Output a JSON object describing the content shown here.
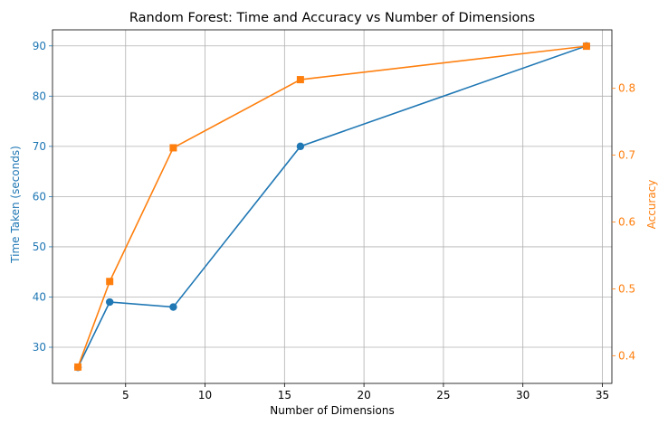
{
  "chart_data": {
    "type": "line",
    "title": "Random Forest: Time and Accuracy vs Number of Dimensions",
    "xlabel": "Number of Dimensions",
    "ylabel_left": "Time Taken (seconds)",
    "ylabel_right": "Accuracy",
    "x": [
      2,
      4,
      8,
      16,
      34
    ],
    "xlim": [
      0.4,
      35.6
    ],
    "xticks": [
      5,
      10,
      15,
      20,
      25,
      30,
      35
    ],
    "ylim_left": [
      22.8,
      93.2
    ],
    "yticks_left": [
      30,
      40,
      50,
      60,
      70,
      80,
      90
    ],
    "ylim_right": [
      0.3585,
      0.8875
    ],
    "yticks_right": [
      0.4,
      0.5,
      0.6,
      0.7,
      0.8
    ],
    "grid": true,
    "series": [
      {
        "axis": "left",
        "values": [
          26,
          39,
          38,
          70,
          90
        ],
        "color": "#1f77b4",
        "marker": "circle"
      },
      {
        "axis": "right",
        "values": [
          0.383,
          0.511,
          0.711,
          0.813,
          0.863
        ],
        "color": "#ff7f0e",
        "marker": "square"
      }
    ]
  }
}
